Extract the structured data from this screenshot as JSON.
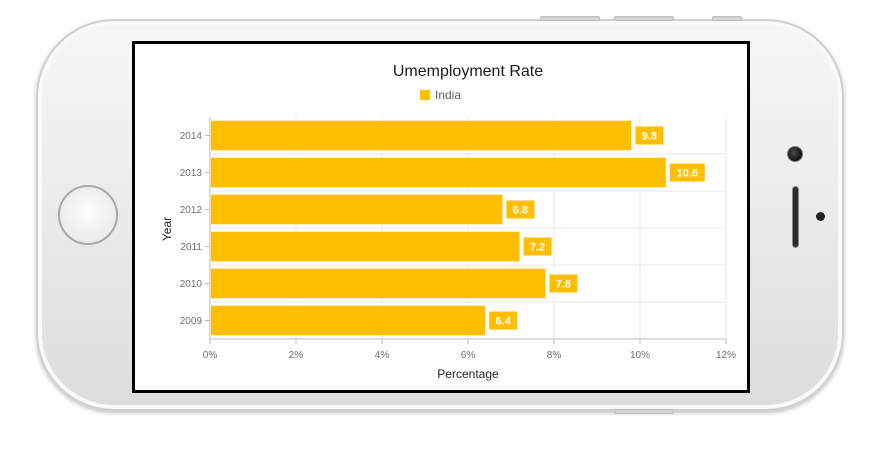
{
  "chart_data": {
    "type": "bar",
    "orientation": "horizontal",
    "title": "Umemployment Rate",
    "xlabel": "Percentage",
    "ylabel": "Year",
    "categories": [
      "2014",
      "2013",
      "2012",
      "2011",
      "2010",
      "2009"
    ],
    "series": [
      {
        "name": "India",
        "values": [
          9.8,
          10.6,
          6.8,
          7.2,
          7.8,
          6.4
        ]
      }
    ],
    "data_labels": [
      "9.8",
      "10.6",
      "6.8",
      "7.2",
      "7.8",
      "6.4"
    ],
    "x_ticks": [
      "0%",
      "2%",
      "4%",
      "6%",
      "8%",
      "10%",
      "12%"
    ],
    "xlim": [
      0,
      12
    ],
    "grid": true,
    "legend_position": "top",
    "colors": {
      "series": "#FFBE00",
      "grid": "#e8e8e8",
      "axis": "#bdbdbd"
    }
  }
}
